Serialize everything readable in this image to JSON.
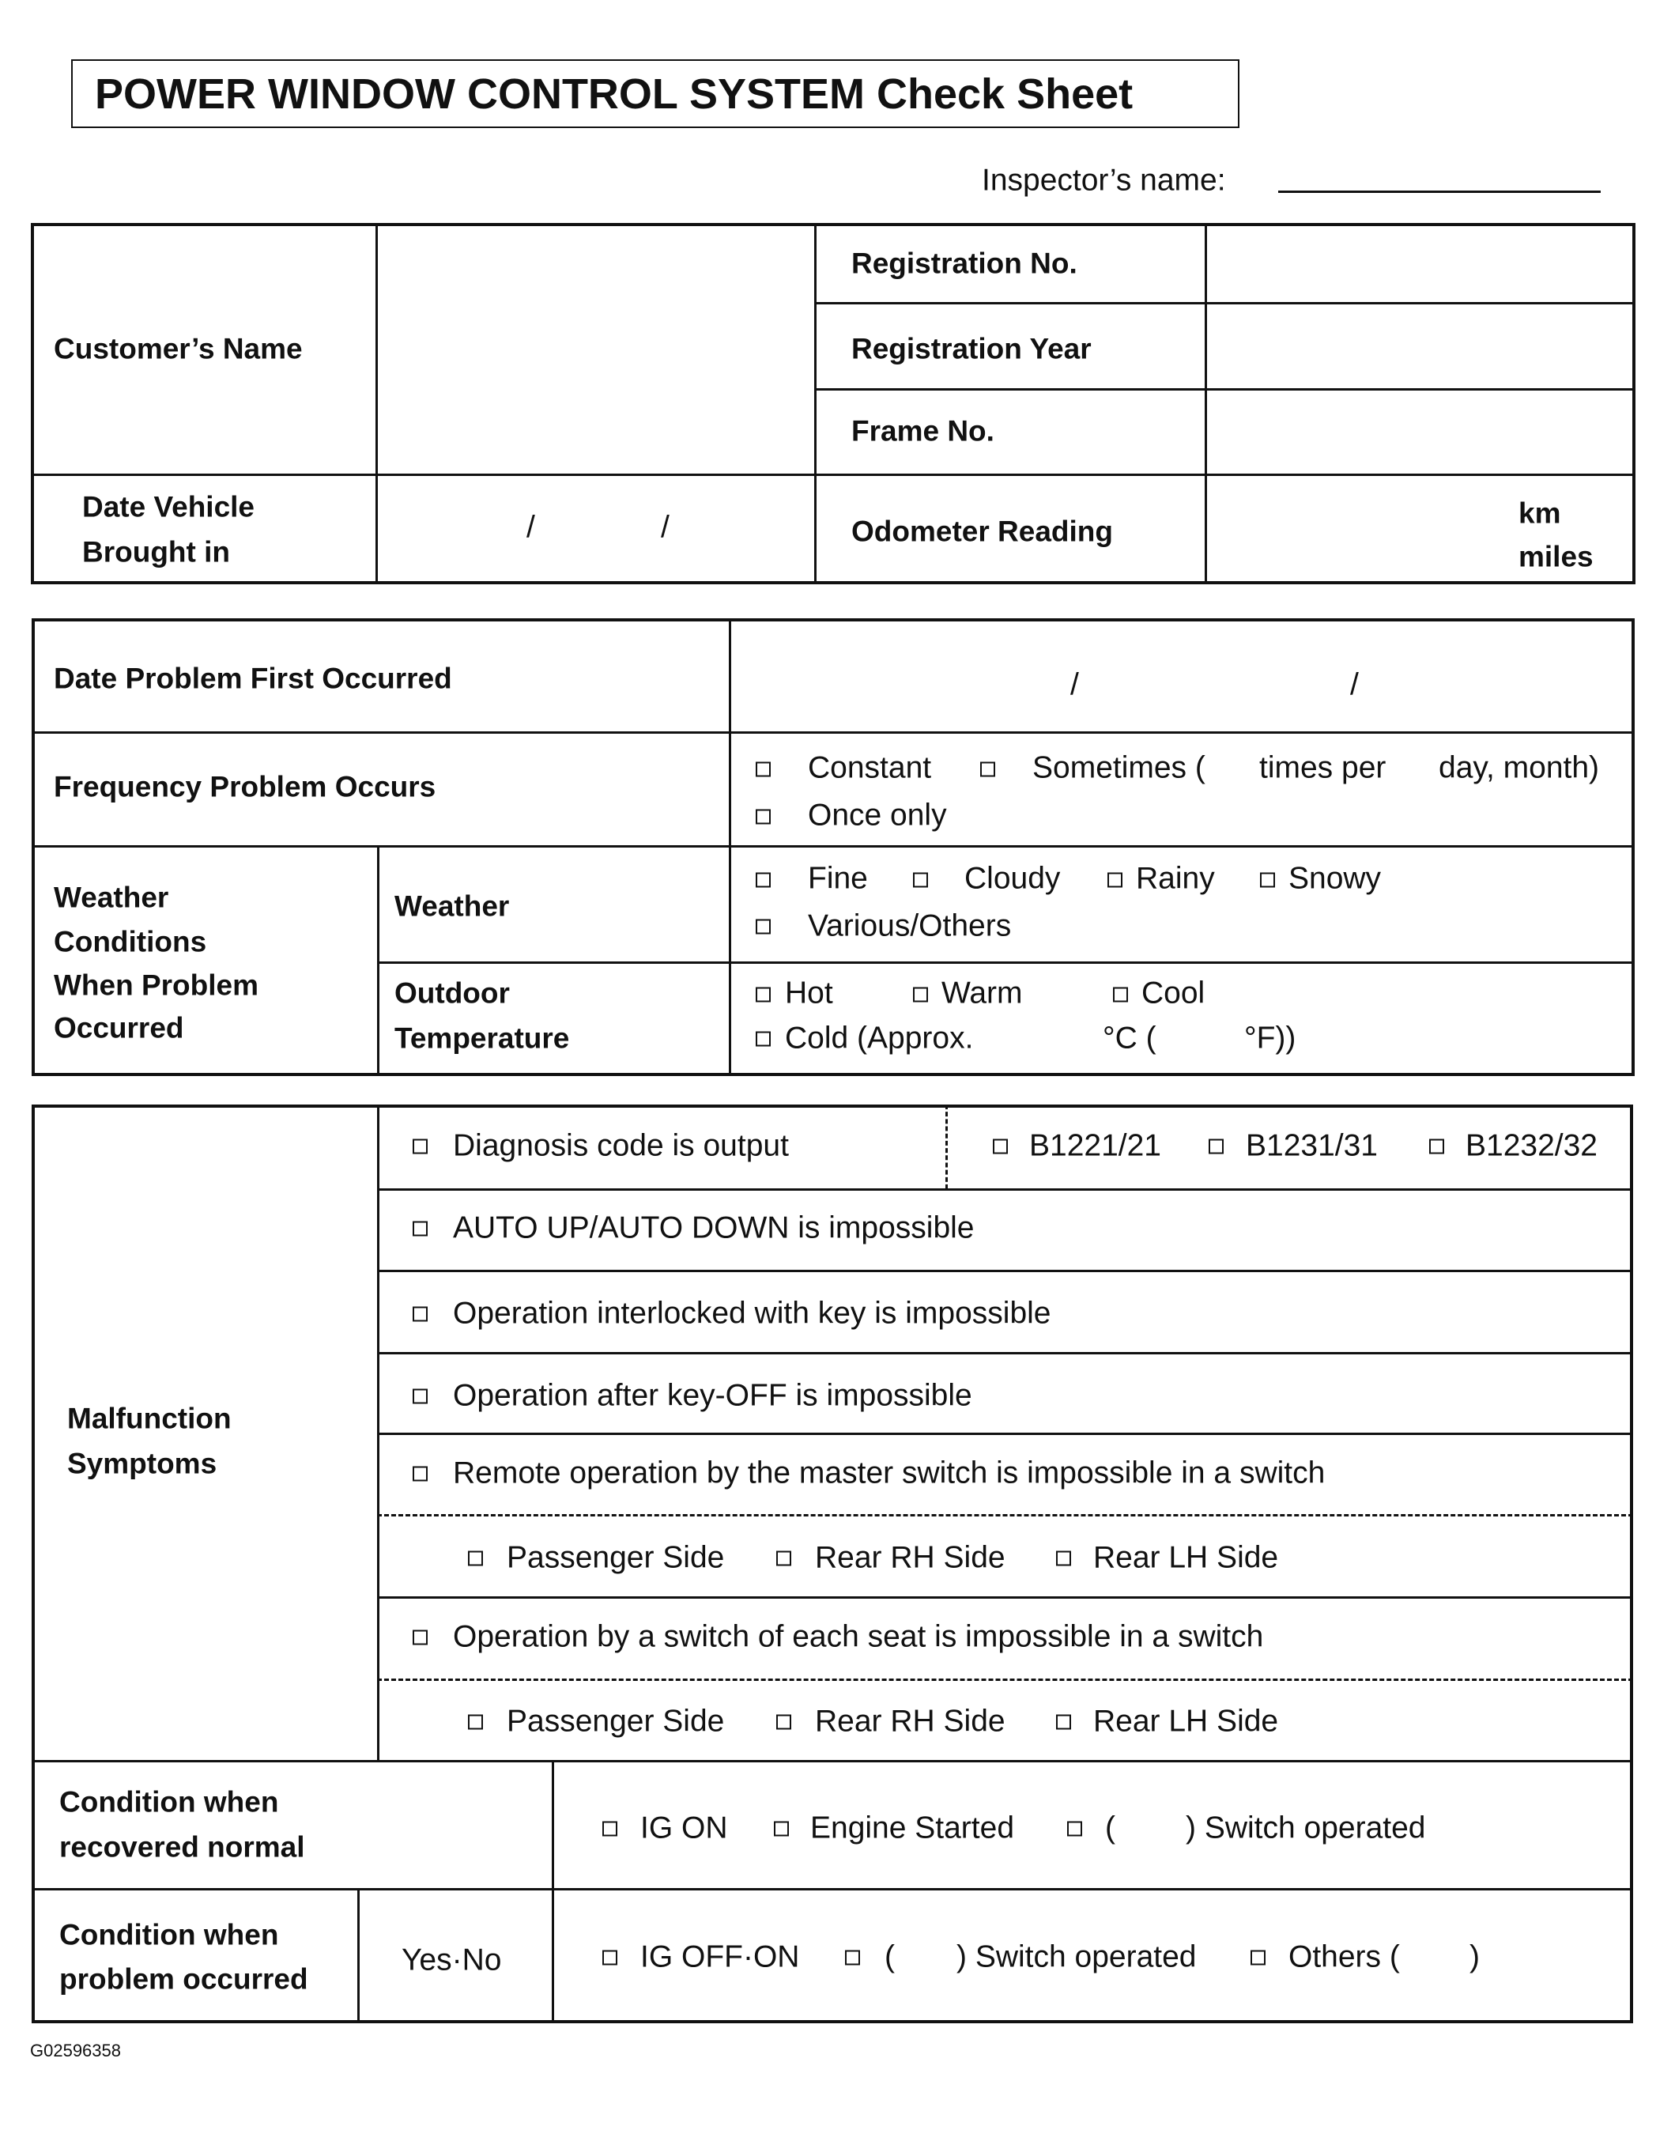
{
  "header": {
    "title": "POWER WINDOW CONTROL SYSTEM Check Sheet",
    "inspector_label": "Inspector’s name:"
  },
  "vehicle": {
    "customer_name": "Customer’s Name",
    "registration_no": "Registration No.",
    "registration_year": "Registration Year",
    "frame_no": "Frame No.",
    "date_brought_line1": "Date Vehicle",
    "date_brought_line2": "Brought in",
    "date_sep": "/",
    "odometer": "Odometer Reading",
    "km": "km",
    "miles": "miles"
  },
  "problem": {
    "date_first": "Date Problem First Occurred",
    "date_sep": "/",
    "frequency": "Frequency Problem Occurs",
    "freq_options": {
      "constant": "Constant",
      "sometimes": "Sometimes (",
      "times_per": "times per",
      "day_month": "day, month)",
      "once": "Once only"
    },
    "weather_group": [
      "Weather",
      "Conditions",
      "When Problem",
      "Occurred"
    ],
    "weather": "Weather",
    "weather_options": [
      "Fine",
      "Cloudy",
      "Rainy",
      "Snowy",
      "Various/Others"
    ],
    "outdoor_line1": "Outdoor",
    "outdoor_line2": "Temperature",
    "temp_options": {
      "hot": "Hot",
      "warm": "Warm",
      "cool": "Cool",
      "cold": "Cold (Approx.",
      "celsius": "°C (",
      "fahrenheit": "°F))"
    }
  },
  "symptoms": {
    "label_line1": "Malfunction",
    "label_line2": "Symptoms",
    "diagnosis": "Diagnosis code is output",
    "codes": [
      "B1221/21",
      "B1231/31",
      "B1232/32"
    ],
    "auto": "AUTO UP/AUTO DOWN is impossible",
    "interlocked": "Operation interlocked with key is impossible",
    "after_off": "Operation after key-OFF is impossible",
    "remote": "Remote operation by the master switch is impossible in a switch",
    "each_seat": "Operation by a switch of each seat is impossible in a switch",
    "sides": [
      "Passenger Side",
      "Rear RH Side",
      "Rear LH Side"
    ]
  },
  "conditions": {
    "recovered_line1": "Condition when",
    "recovered_line2": "recovered normal",
    "recovered_options": {
      "ig_on": "IG ON",
      "engine": "Engine Started",
      "open": "(",
      "switch": ") Switch operated"
    },
    "occurred_line1": "Condition when",
    "occurred_line2": "problem occurred",
    "yes_no": "Yes·No",
    "occurred_options": {
      "ig_off_on": "IG OFF·ON",
      "open": "(",
      "switch": ") Switch operated",
      "others": "Others (",
      "close": ")"
    }
  },
  "footer": {
    "figure_id": "G02596358"
  }
}
